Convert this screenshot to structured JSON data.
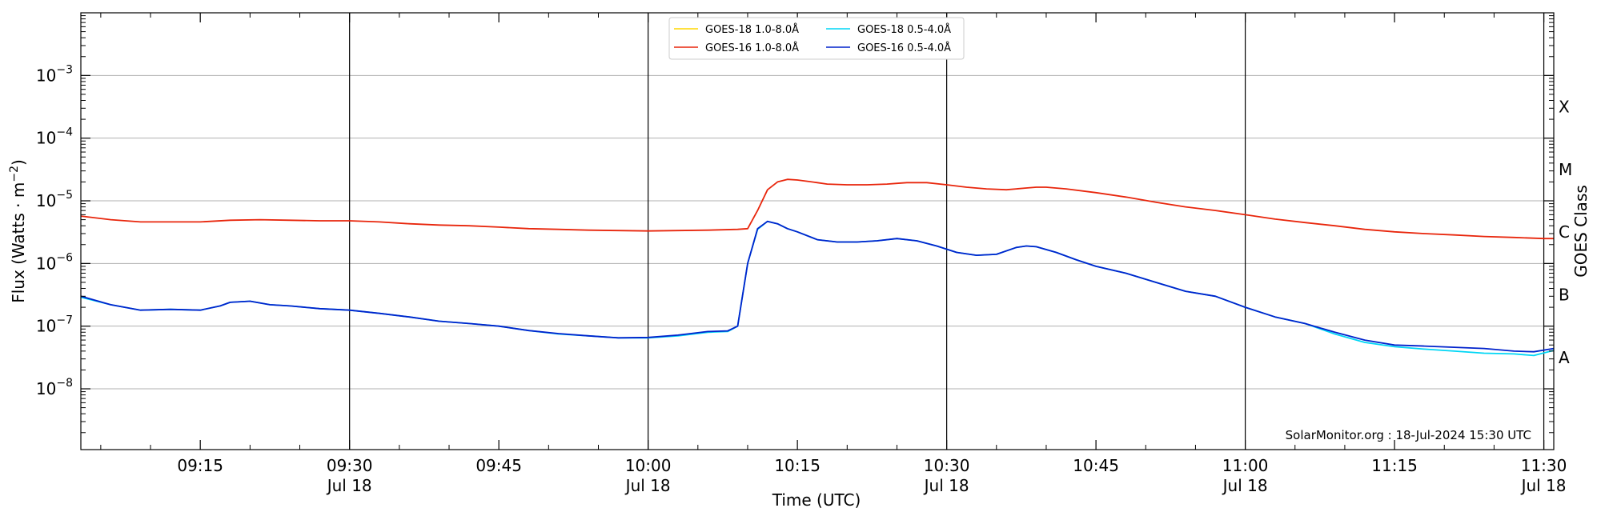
{
  "chart_data": {
    "type": "line",
    "xlabel": "Time (UTC)",
    "ylabel_main": "Flux (Watts · m",
    "ylabel_sup": "−2",
    "ylabel_close": ")",
    "ylabel_right": "GOES Class",
    "credit": "SolarMonitor.org : 18-Jul-2024 15:30 UTC",
    "x_unit": "minutes of day (UTC)",
    "xlim": [
      543,
      691
    ],
    "ylim_log10": [
      -8.97,
      -2.0
    ],
    "ylog": true,
    "grid": "horizontal",
    "legend_position": "top-center",
    "y_ticks": [
      {
        "exp": -3,
        "label": "10",
        "sup": "−3"
      },
      {
        "exp": -4,
        "label": "10",
        "sup": "−4"
      },
      {
        "exp": -5,
        "label": "10",
        "sup": "−5"
      },
      {
        "exp": -6,
        "label": "10",
        "sup": "−6"
      },
      {
        "exp": -7,
        "label": "10",
        "sup": "−7"
      },
      {
        "exp": -8,
        "label": "10",
        "sup": "−8"
      }
    ],
    "x_ticks": [
      {
        "t": 555,
        "label": "09:15",
        "sub": ""
      },
      {
        "t": 570,
        "label": "09:30",
        "sub": "Jul 18"
      },
      {
        "t": 585,
        "label": "09:45",
        "sub": ""
      },
      {
        "t": 600,
        "label": "10:00",
        "sub": "Jul 18"
      },
      {
        "t": 615,
        "label": "10:15",
        "sub": ""
      },
      {
        "t": 630,
        "label": "10:30",
        "sub": "Jul 18"
      },
      {
        "t": 645,
        "label": "10:45",
        "sub": ""
      },
      {
        "t": 660,
        "label": "11:00",
        "sub": "Jul 18"
      },
      {
        "t": 675,
        "label": "11:15",
        "sub": ""
      },
      {
        "t": 690,
        "label": "11:30",
        "sub": "Jul 18"
      }
    ],
    "vertical_lines": [
      570,
      600,
      630,
      660,
      690
    ],
    "classes": [
      {
        "label": "X",
        "exp": -3.5
      },
      {
        "label": "M",
        "exp": -4.5
      },
      {
        "label": "C",
        "exp": -5.5
      },
      {
        "label": "B",
        "exp": -6.5
      },
      {
        "label": "A",
        "exp": -7.5
      }
    ],
    "series": [
      {
        "name": "GOES-18 1.0-8.0Å",
        "color": "#ffd700",
        "x": [],
        "values": []
      },
      {
        "name": "GOES-16 1.0-8.0Å",
        "color": "#e8260c",
        "x": [
          543,
          546,
          549,
          552,
          555,
          558,
          561,
          564,
          567,
          570,
          573,
          576,
          579,
          582,
          585,
          588,
          591,
          594,
          597,
          600,
          603,
          606,
          609,
          610,
          611,
          612,
          613,
          614,
          615,
          616,
          617,
          618,
          620,
          622,
          624,
          625,
          626,
          627,
          628,
          630,
          632,
          634,
          636,
          638,
          639,
          640,
          642,
          645,
          648,
          651,
          654,
          657,
          660,
          663,
          666,
          669,
          672,
          675,
          678,
          681,
          684,
          687,
          690,
          691
        ],
        "values": [
          5.7e-06,
          5e-06,
          4.6e-06,
          4.6e-06,
          4.6e-06,
          4.9e-06,
          5e-06,
          4.9e-06,
          4.8e-06,
          4.8e-06,
          4.6e-06,
          4.3e-06,
          4.1e-06,
          4e-06,
          3.8e-06,
          3.6e-06,
          3.5e-06,
          3.4e-06,
          3.35e-06,
          3.3e-06,
          3.35e-06,
          3.4e-06,
          3.5e-06,
          3.6e-06,
          7e-06,
          1.5e-05,
          2e-05,
          2.2e-05,
          2.15e-05,
          2.05e-05,
          1.95e-05,
          1.85e-05,
          1.8e-05,
          1.8e-05,
          1.85e-05,
          1.9e-05,
          1.95e-05,
          1.95e-05,
          1.95e-05,
          1.8e-05,
          1.65e-05,
          1.55e-05,
          1.5e-05,
          1.6e-05,
          1.65e-05,
          1.65e-05,
          1.55e-05,
          1.35e-05,
          1.15e-05,
          9.5e-06,
          8e-06,
          7e-06,
          6e-06,
          5.1e-06,
          4.5e-06,
          4e-06,
          3.5e-06,
          3.2e-06,
          3e-06,
          2.85e-06,
          2.7e-06,
          2.6e-06,
          2.5e-06,
          2.5e-06
        ]
      },
      {
        "name": "GOES-18 0.5-4.0Å",
        "color": "#00d6f5",
        "x": [
          543,
          546,
          549,
          552,
          555,
          557,
          558,
          560,
          562,
          564,
          567,
          570,
          573,
          576,
          579,
          582,
          585,
          588,
          591,
          594,
          597,
          600,
          603,
          606,
          608,
          609,
          610,
          611,
          612,
          613,
          614,
          615,
          617,
          619,
          621,
          623,
          625,
          627,
          629,
          631,
          633,
          635,
          637,
          638,
          639,
          641,
          643,
          645,
          648,
          651,
          654,
          657,
          660,
          663,
          666,
          669,
          672,
          675,
          678,
          681,
          684,
          687,
          689,
          691
        ],
        "values": [
          2.9e-07,
          2.2e-07,
          1.8e-07,
          1.85e-07,
          1.8e-07,
          2.1e-07,
          2.4e-07,
          2.5e-07,
          2.2e-07,
          2.1e-07,
          1.9e-07,
          1.8e-07,
          1.6e-07,
          1.4e-07,
          1.2e-07,
          1.1e-07,
          1e-07,
          8.5e-08,
          7.5e-08,
          7e-08,
          6.5e-08,
          6.5e-08,
          7e-08,
          8e-08,
          8.2e-08,
          1e-07,
          1e-06,
          3.5e-06,
          4.7e-06,
          4.3e-06,
          3.6e-06,
          3.2e-06,
          2.4e-06,
          2.2e-06,
          2.2e-06,
          2.3e-06,
          2.5e-06,
          2.3e-06,
          1.9e-06,
          1.5e-06,
          1.35e-06,
          1.4e-06,
          1.8e-06,
          1.9e-06,
          1.85e-06,
          1.5e-06,
          1.15e-06,
          9e-07,
          7e-07,
          5e-07,
          3.6e-07,
          3e-07,
          2e-07,
          1.4e-07,
          1.1e-07,
          7.5e-08,
          5.5e-08,
          4.7e-08,
          4.3e-08,
          4e-08,
          3.7e-08,
          3.6e-08,
          3.4e-08,
          4.1e-08
        ]
      },
      {
        "name": "GOES-16 0.5-4.0Å",
        "color": "#0022cc",
        "x": [
          543,
          546,
          549,
          552,
          555,
          557,
          558,
          560,
          562,
          564,
          567,
          570,
          573,
          576,
          579,
          582,
          585,
          588,
          591,
          594,
          597,
          600,
          603,
          606,
          608,
          609,
          610,
          611,
          612,
          613,
          614,
          615,
          617,
          619,
          621,
          623,
          625,
          627,
          629,
          631,
          633,
          635,
          637,
          638,
          639,
          641,
          643,
          645,
          648,
          651,
          654,
          657,
          660,
          663,
          666,
          669,
          672,
          675,
          678,
          681,
          684,
          687,
          689,
          691
        ],
        "values": [
          3e-07,
          2.2e-07,
          1.8e-07,
          1.85e-07,
          1.8e-07,
          2.1e-07,
          2.4e-07,
          2.5e-07,
          2.2e-07,
          2.1e-07,
          1.9e-07,
          1.8e-07,
          1.6e-07,
          1.4e-07,
          1.2e-07,
          1.1e-07,
          1e-07,
          8.5e-08,
          7.6e-08,
          7e-08,
          6.5e-08,
          6.6e-08,
          7.2e-08,
          8.2e-08,
          8.4e-08,
          1e-07,
          1e-06,
          3.6e-06,
          4.7e-06,
          4.3e-06,
          3.6e-06,
          3.2e-06,
          2.4e-06,
          2.2e-06,
          2.2e-06,
          2.3e-06,
          2.5e-06,
          2.3e-06,
          1.9e-06,
          1.5e-06,
          1.35e-06,
          1.4e-06,
          1.8e-06,
          1.9e-06,
          1.85e-06,
          1.5e-06,
          1.15e-06,
          9e-07,
          7e-07,
          5e-07,
          3.6e-07,
          3e-07,
          2e-07,
          1.4e-07,
          1.1e-07,
          8e-08,
          6e-08,
          5e-08,
          4.8e-08,
          4.6e-08,
          4.4e-08,
          4e-08,
          3.9e-08,
          4.4e-08
        ]
      }
    ]
  }
}
